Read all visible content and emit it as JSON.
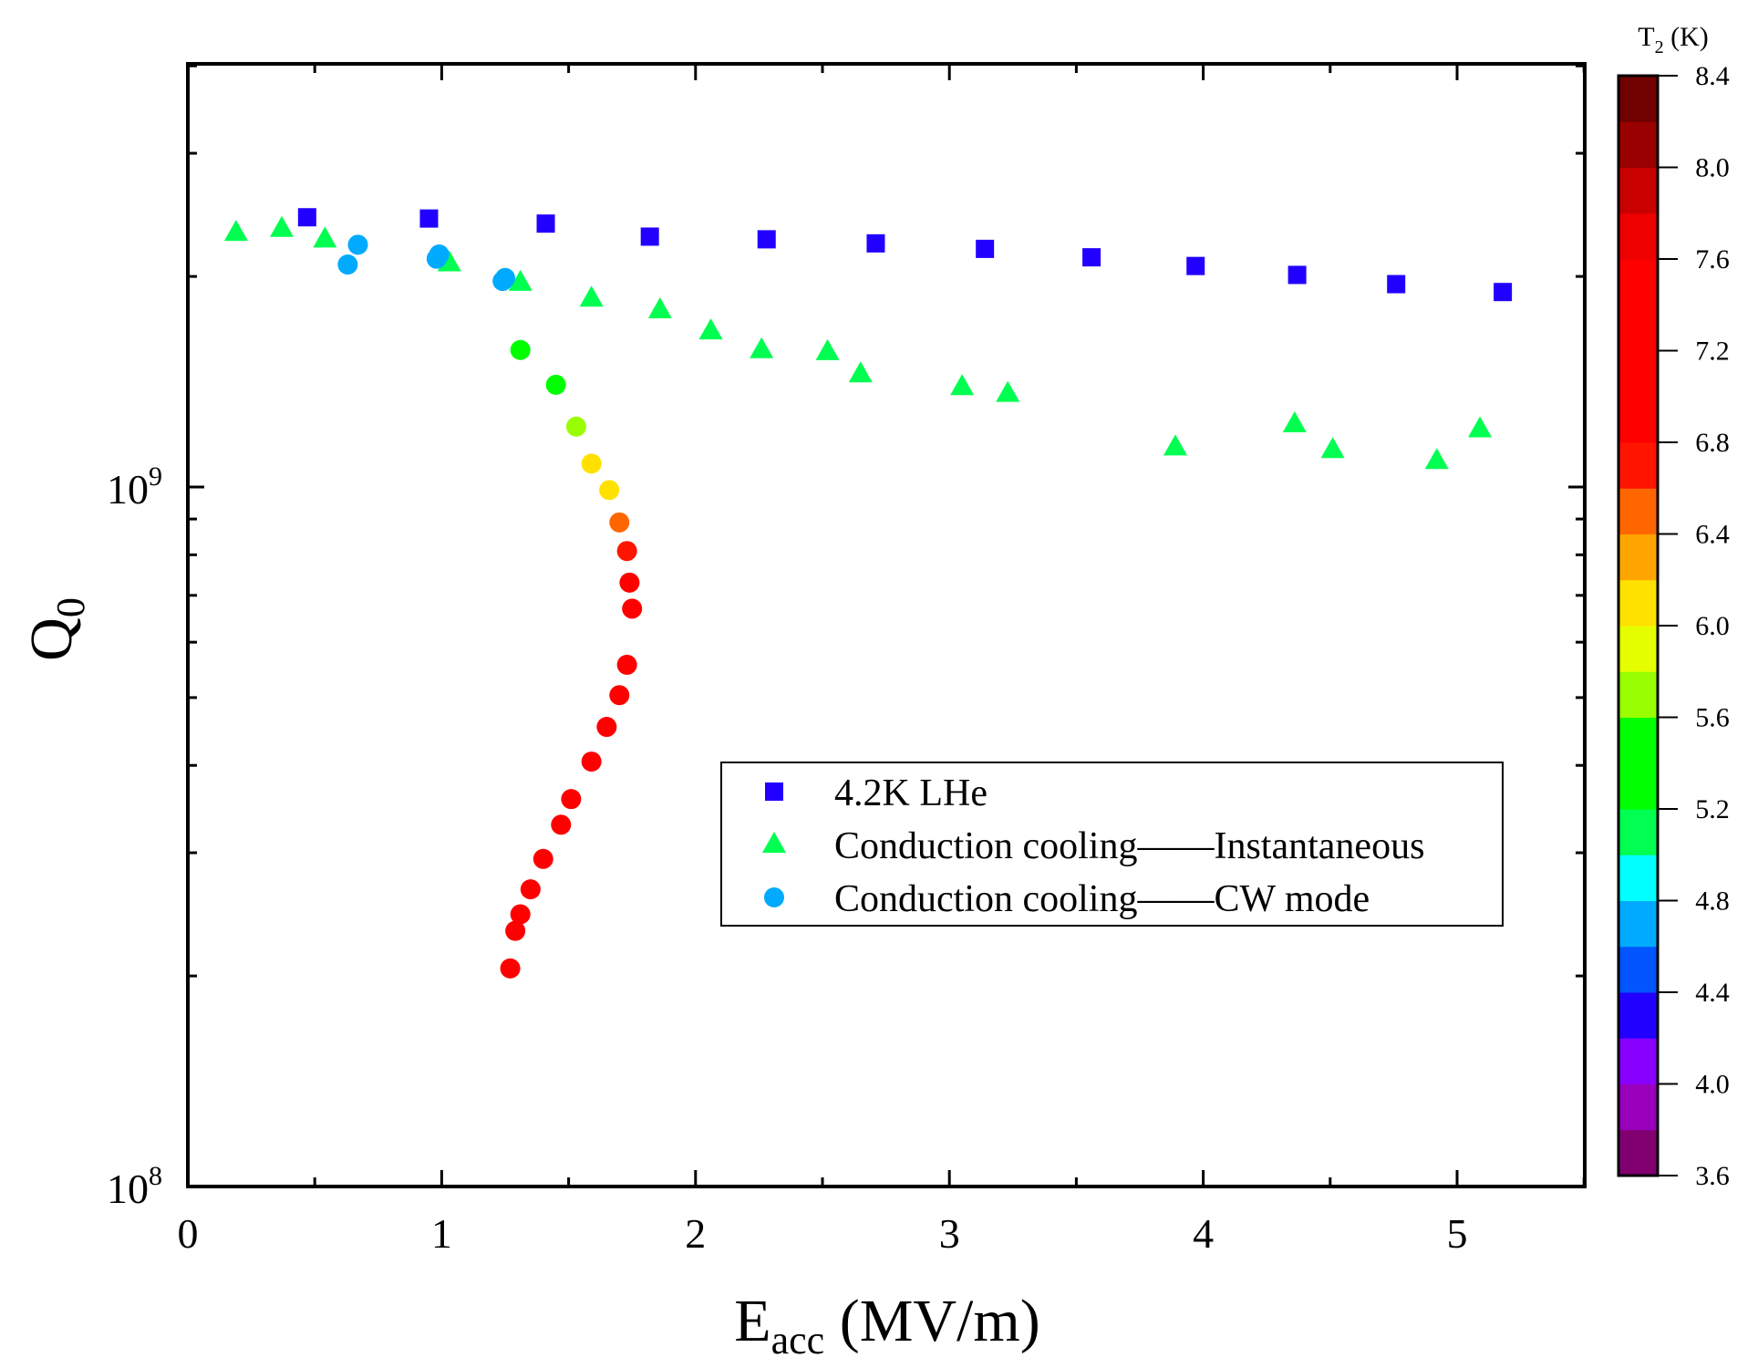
{
  "chart_data": {
    "type": "scatter",
    "title": "",
    "xlabel": {
      "main": "E",
      "sub": "acc",
      "rest": " (MV/m)"
    },
    "ylabel": {
      "main": "Q",
      "sub": "0"
    },
    "xlim": [
      0,
      5.5
    ],
    "ylim": [
      100000000.0,
      4000000000.0
    ],
    "yscale": "log",
    "xticks": [
      "0",
      "1",
      "2",
      "3",
      "4",
      "5"
    ],
    "yticks": [
      {
        "base": "10",
        "exp": "8",
        "value": 100000000.0
      },
      {
        "base": "10",
        "exp": "9",
        "value": 1000000000.0
      }
    ],
    "grid": false,
    "legend_position": "center-right",
    "colorbar": {
      "title": {
        "main": "T",
        "sub": "2",
        "rest": " (K)"
      },
      "range": [
        3.6,
        8.4
      ],
      "ticks": [
        "3.6",
        "4.0",
        "4.4",
        "4.8",
        "5.2",
        "5.6",
        "6.0",
        "6.4",
        "6.8",
        "7.2",
        "7.6",
        "8.0",
        "8.4"
      ],
      "band_colors": [
        "#800070",
        "#9900bb",
        "#8800ff",
        "#2200ff",
        "#0055ff",
        "#00aaff",
        "#00ffff",
        "#00ff50",
        "#00ff00",
        "#00ff00",
        "#99ff00",
        "#e6ff00",
        "#ffe100",
        "#ffa500",
        "#ff6600",
        "#ff1400",
        "#ff0000",
        "#ff0000",
        "#ff0000",
        "#ff0000",
        "#ee0000",
        "#c80000",
        "#990000",
        "#710000"
      ]
    },
    "series": [
      {
        "name": "4.2K LHe",
        "marker": "square",
        "color": "#2200ff",
        "x": [
          0.47,
          0.95,
          1.41,
          1.82,
          2.28,
          2.71,
          3.14,
          3.56,
          3.97,
          4.37,
          4.76,
          5.18
        ],
        "y": [
          2430000000.0,
          2420000000.0,
          2380000000.0,
          2280000000.0,
          2260000000.0,
          2230000000.0,
          2190000000.0,
          2130000000.0,
          2070000000.0,
          2010000000.0,
          1950000000.0,
          1900000000.0
        ]
      },
      {
        "name": "Conduction cooling——Instantaneous",
        "marker": "triangle",
        "color": "#00ff50",
        "x": [
          0.19,
          0.37,
          0.54,
          1.03,
          1.31,
          1.59,
          1.86,
          2.06,
          2.26,
          2.52,
          2.65,
          3.05,
          3.23,
          3.89,
          4.36,
          4.51,
          4.92,
          5.09
        ],
        "y": [
          2310000000.0,
          2340000000.0,
          2260000000.0,
          2090000000.0,
          1960000000.0,
          1860000000.0,
          1790000000.0,
          1670000000.0,
          1570000000.0,
          1560000000.0,
          1450000000.0,
          1390000000.0,
          1360000000.0,
          1140000000.0,
          1230000000.0,
          1130000000.0,
          1090000000.0,
          1210000000.0
        ]
      },
      {
        "name": "Conduction cooling——CW mode",
        "marker": "circle",
        "color": "#00aaff",
        "x": [
          0.63,
          0.67,
          0.98,
          0.99,
          1.24,
          1.25,
          1.31,
          1.45,
          1.53,
          1.59,
          1.66,
          1.7,
          1.73,
          1.74,
          1.75,
          1.73,
          1.7,
          1.65,
          1.59,
          1.51,
          1.47,
          1.4,
          1.35,
          1.31,
          1.29,
          1.27
        ],
        "y": [
          2080000000.0,
          2220000000.0,
          2120000000.0,
          2150000000.0,
          1970000000.0,
          1990000000.0,
          1570000000.0,
          1400000000.0,
          1220000000.0,
          1080000000.0,
          990000000.0,
          890000000.0,
          810000000.0,
          730000000.0,
          670000000.0,
          557000000.0,
          504000000.0,
          454000000.0,
          405000000.0,
          358000000.0,
          329000000.0,
          294000000.0,
          266000000.0,
          245000000.0,
          232000000.0,
          205000000.0
        ],
        "T2": [
          4.7,
          4.7,
          4.7,
          4.7,
          4.7,
          4.7,
          5.3,
          5.3,
          5.7,
          6.1,
          6.1,
          6.5,
          6.7,
          6.9,
          6.9,
          6.9,
          6.9,
          6.9,
          6.9,
          6.9,
          6.9,
          6.9,
          6.9,
          6.9,
          6.9,
          6.9
        ]
      }
    ]
  }
}
